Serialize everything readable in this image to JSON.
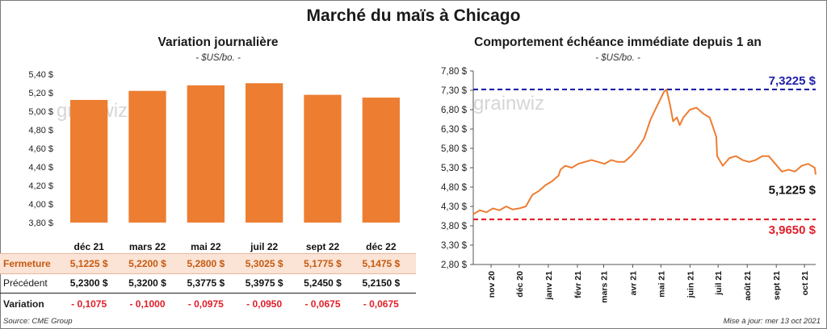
{
  "title": "Marché du maïs à Chicago",
  "left_chart": {
    "title": "Variation journalière",
    "unit": "- $US/bo. -",
    "watermark": "grainwiz"
  },
  "right_chart": {
    "title": "Comportement  échéance immédiate depuis 1 an",
    "unit": "- $US/bo. -",
    "watermark": "grainwiz",
    "max_label": "7,3225 $",
    "min_label": "3,9650 $",
    "last_label": "5,1225 $"
  },
  "table": {
    "rows": [
      {
        "label": "Fermeture",
        "values": [
          "5,1225  $",
          "5,2200  $",
          "5,2800  $",
          "5,3025  $",
          "5,1775  $",
          "5,1475  $"
        ]
      },
      {
        "label": "Précédent",
        "values": [
          "5,2300  $",
          "5,3200  $",
          "5,3775  $",
          "5,3975  $",
          "5,2450  $",
          "5,2150  $"
        ]
      },
      {
        "label": "Variation",
        "values": [
          "- 0,1075",
          "- 0,1000",
          "- 0,0975",
          "- 0,0950",
          "- 0,0675",
          "- 0,0675"
        ]
      }
    ]
  },
  "source": "Source: CME Group",
  "updated": "Mise à jour: mer 13 oct 2021",
  "colors": {
    "bar": "#ED7D31",
    "line": "#ED7D31",
    "max_line": "#1F1FA8",
    "min_line": "#E0202A",
    "variation": "#E0202A",
    "fermeture_bg": "#FBE3D5"
  },
  "chart_data": [
    {
      "type": "bar",
      "title": "Variation journalière",
      "ylabel": "- $US/bo. -",
      "categories": [
        "déc 21",
        "mars 22",
        "mai 22",
        "juil 22",
        "sept 22",
        "déc 22"
      ],
      "values": [
        5.1225,
        5.22,
        5.28,
        5.3025,
        5.1775,
        5.1475
      ],
      "ylim": [
        3.8,
        5.4
      ],
      "yticks": [
        "3,80 $",
        "4,00 $",
        "4,20 $",
        "4,40 $",
        "4,60 $",
        "4,80 $",
        "5,00 $",
        "5,20 $",
        "5,40 $"
      ],
      "grid": false
    },
    {
      "type": "line",
      "title": "Comportement  échéance immédiate depuis 1 an",
      "ylabel": "- $US/bo. -",
      "ylim": [
        2.8,
        7.8
      ],
      "yticks": [
        "2,80 $",
        "3,30 $",
        "3,80 $",
        "4,30 $",
        "4,80 $",
        "5,30 $",
        "5,80 $",
        "6,30 $",
        "6,80 $",
        "7,30 $",
        "7,80 $"
      ],
      "xticks": [
        "nov 20",
        "déc 20",
        "janv 21",
        "févr 21",
        "mars 21",
        "avr 21",
        "mai 21",
        "juin 21",
        "juil 21",
        "août 21",
        "sept 21",
        "oct 21"
      ],
      "hlines": [
        {
          "value": 7.3225,
          "label": "7,3225 $"
        },
        {
          "value": 3.965,
          "label": "3,9650 $"
        }
      ],
      "series": [
        {
          "x": [
            "2020-10-13",
            "2020-10-20",
            "2020-10-27",
            "2020-11-03",
            "2020-11-10",
            "2020-11-17",
            "2020-11-24",
            "2020-12-01",
            "2020-12-08",
            "2020-12-15",
            "2020-12-22",
            "2020-12-29",
            "2021-01-05",
            "2021-01-12",
            "2021-01-14",
            "2021-01-19",
            "2021-01-26",
            "2021-02-02",
            "2021-02-09",
            "2021-02-16",
            "2021-02-23",
            "2021-03-02",
            "2021-03-09",
            "2021-03-16",
            "2021-03-23",
            "2021-03-30",
            "2021-04-06",
            "2021-04-13",
            "2021-04-20",
            "2021-04-27",
            "2021-05-04",
            "2021-05-07",
            "2021-05-11",
            "2021-05-14",
            "2021-05-18",
            "2021-05-21",
            "2021-05-25",
            "2021-06-01",
            "2021-06-08",
            "2021-06-15",
            "2021-06-22",
            "2021-06-29",
            "2021-06-30",
            "2021-07-06",
            "2021-07-13",
            "2021-07-20",
            "2021-07-27",
            "2021-08-03",
            "2021-08-10",
            "2021-08-17",
            "2021-08-24",
            "2021-08-31",
            "2021-09-07",
            "2021-09-14",
            "2021-09-21",
            "2021-09-28",
            "2021-10-05",
            "2021-10-12",
            "2021-10-13"
          ],
          "y": [
            4.1,
            4.2,
            4.15,
            4.25,
            4.2,
            4.3,
            4.22,
            4.25,
            4.3,
            4.6,
            4.7,
            4.85,
            4.95,
            5.1,
            5.25,
            5.35,
            5.3,
            5.4,
            5.45,
            5.5,
            5.45,
            5.4,
            5.5,
            5.45,
            5.45,
            5.6,
            5.8,
            6.05,
            6.55,
            6.9,
            7.25,
            7.3225,
            6.9,
            6.5,
            6.6,
            6.4,
            6.6,
            6.8,
            6.85,
            6.7,
            6.6,
            6.1,
            5.6,
            5.35,
            5.55,
            5.6,
            5.5,
            5.45,
            5.5,
            5.6,
            5.6,
            5.4,
            5.2,
            5.25,
            5.2,
            5.35,
            5.4,
            5.3,
            5.1225
          ]
        }
      ]
    }
  ]
}
